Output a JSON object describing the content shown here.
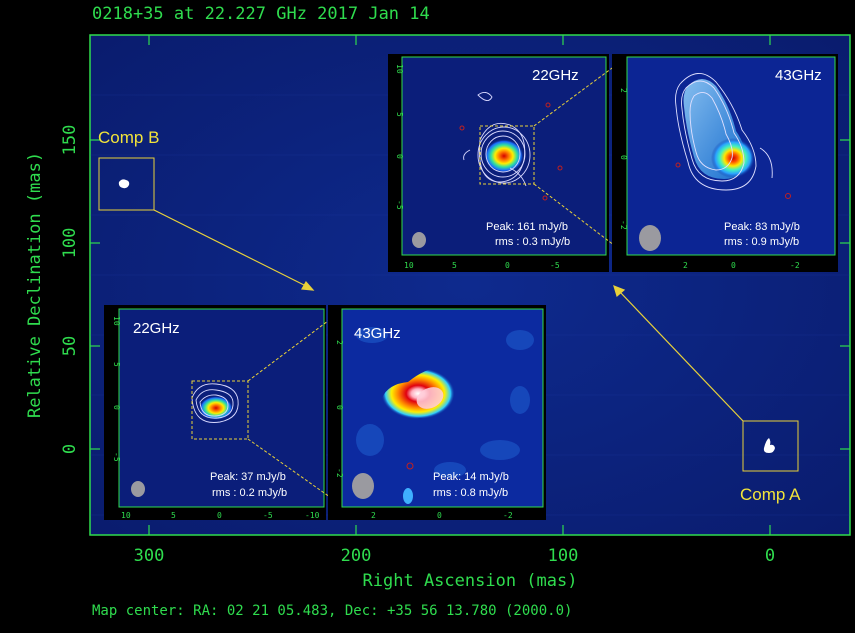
{
  "title": "0218+35 at 22.227 GHz 2017 Jan 14",
  "footer": "Map center:  RA: 02 21 05.483,  Dec: +35 56 13.780 (2000.0)",
  "axes": {
    "xlabel": "Right Ascension  (mas)",
    "ylabel": "Relative Declination  (mas)",
    "xticks": [
      "300",
      "200",
      "100",
      "0"
    ],
    "yticks": [
      "150",
      "100",
      "50",
      "0"
    ]
  },
  "components": {
    "b_label": "Comp B",
    "a_label": "Comp A"
  },
  "insets": {
    "a22": {
      "freq": "22GHz",
      "peak": "Peak: 161 mJy/b",
      "rms": "rms : 0.3 mJy/b",
      "xticks": [
        "10",
        "5",
        "0",
        "-5"
      ],
      "yticks": [
        "10",
        "5",
        "0",
        "-5"
      ]
    },
    "a43": {
      "freq": "43GHz",
      "peak": "Peak: 83 mJy/b",
      "rms": "rms : 0.9 mJy/b",
      "xticks": [
        "2",
        "0",
        "-2"
      ],
      "yticks": [
        "2",
        "0",
        "-2"
      ]
    },
    "b22": {
      "freq": "22GHz",
      "peak": "Peak: 37 mJy/b",
      "rms": "rms : 0.2 mJy/b",
      "xticks": [
        "10",
        "5",
        "0",
        "-5",
        "-10"
      ],
      "yticks": [
        "10",
        "5",
        "0",
        "-5"
      ]
    },
    "b43": {
      "freq": "43GHz",
      "peak": "Peak: 14 mJy/b",
      "rms": "rms : 0.8 mJy/b",
      "xticks": [
        "2",
        "0",
        "-2"
      ],
      "yticks": [
        "2",
        "0",
        "-2"
      ]
    }
  },
  "colors": {
    "axis": "#2fdc4e",
    "label_yellow": "#f2e43a",
    "background_map": "#0a1f7a",
    "arrow": "#e8d13a"
  }
}
